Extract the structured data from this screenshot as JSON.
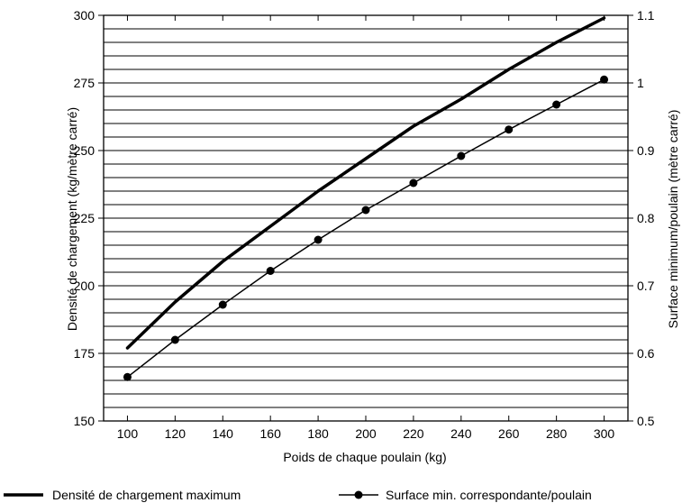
{
  "chart_data": {
    "type": "line",
    "title": "",
    "xlabel": "Poids de chaque poulain (kg)",
    "ylabel_left": "Densité de chargement (kg/mètre carré)",
    "ylabel_right": "Surface minimum/poulain (mètre carré)",
    "x_ticks": [
      100,
      120,
      140,
      160,
      180,
      200,
      220,
      240,
      260,
      280,
      300
    ],
    "y_left_ticks": [
      150,
      175,
      200,
      225,
      250,
      275,
      300
    ],
    "y_right_ticks": [
      "0.5",
      "0.6",
      "0.7",
      "0.8",
      "0.9",
      "1",
      "1.1"
    ],
    "xlim": [
      90,
      310
    ],
    "ylim_left": [
      150,
      300
    ],
    "ylim_right": [
      0.5,
      1.1
    ],
    "grid": "horizontal",
    "legend_position": "bottom",
    "series": [
      {
        "name": "Densité de chargement maximum",
        "axis": "left",
        "marker": "none",
        "line_style": "thick",
        "color": "#000000",
        "x": [
          100,
          120,
          140,
          160,
          180,
          200,
          220,
          240,
          260,
          280,
          300
        ],
        "values": [
          177,
          194,
          209,
          222,
          235,
          247,
          259,
          269,
          280,
          290,
          299
        ]
      },
      {
        "name": "Surface min. correspondante/poulain",
        "axis": "right",
        "marker": "circle",
        "line_style": "thin",
        "color": "#000000",
        "x": [
          100,
          120,
          140,
          160,
          180,
          200,
          220,
          240,
          260,
          280,
          300
        ],
        "values": [
          0.565,
          0.62,
          0.672,
          0.722,
          0.768,
          0.812,
          0.852,
          0.892,
          0.931,
          0.968,
          1.005
        ]
      }
    ]
  }
}
